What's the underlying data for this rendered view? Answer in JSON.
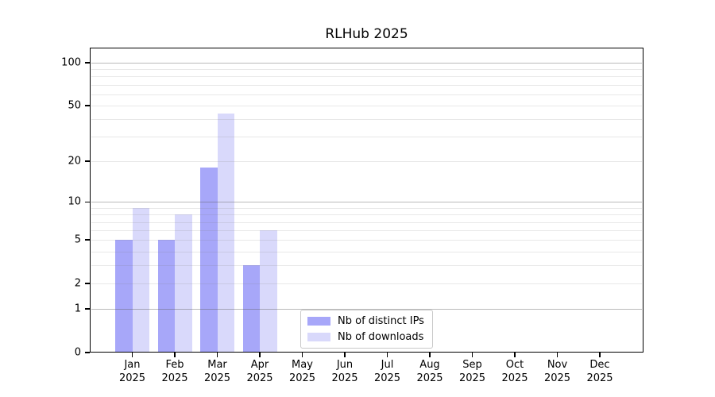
{
  "title": "RLHub 2025",
  "chart_data": {
    "type": "bar",
    "title": "RLHub 2025",
    "categories": [
      "Jan 2025",
      "Feb 2025",
      "Mar 2025",
      "Apr 2025",
      "May 2025",
      "Jun 2025",
      "Jul 2025",
      "Aug 2025",
      "Sep 2025",
      "Oct 2025",
      "Nov 2025",
      "Dec 2025"
    ],
    "series": [
      {
        "name": "Nb of distinct IPs",
        "color": "#a7a7f9",
        "values": [
          5,
          5,
          18,
          3,
          0,
          0,
          0,
          0,
          0,
          0,
          0,
          0
        ]
      },
      {
        "name": "Nb of downloads",
        "color": "#d9d9fb",
        "values": [
          9,
          8,
          44,
          6,
          0,
          0,
          0,
          0,
          0,
          0,
          0,
          0
        ]
      }
    ],
    "xlabel": "",
    "ylabel": "",
    "yscale": "log-like (position ~ log10(1+value))",
    "ylim": [
      0,
      128
    ],
    "ytick_values": [
      0,
      1,
      2,
      5,
      10,
      20,
      50,
      100
    ],
    "ytick_labels": [
      "0",
      "1",
      "2",
      "5",
      "10",
      "20",
      "50",
      "100"
    ],
    "major_grid_values": [
      1,
      10,
      100
    ],
    "minor_grid_values": [
      2,
      3,
      4,
      5,
      6,
      7,
      8,
      9,
      20,
      30,
      40,
      50,
      60,
      70,
      80,
      90
    ],
    "grid": true,
    "legend": {
      "position": "lower center",
      "entries": [
        "Nb of distinct IPs",
        "Nb of downloads"
      ]
    }
  },
  "colors": {
    "bar_distinct_ips": "#a7a7f9",
    "bar_downloads": "#d9d9fb",
    "major_grid": "rgba(90,90,90,0.42)",
    "minor_grid": "rgba(130,130,130,0.18)",
    "axis": "#000000",
    "background": "#ffffff"
  }
}
